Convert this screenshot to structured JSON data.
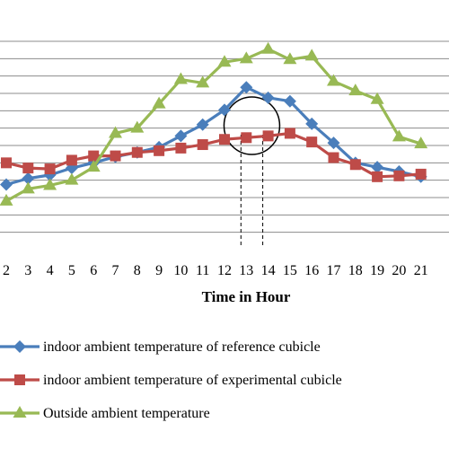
{
  "chart_data": {
    "type": "line",
    "xlabel": "Time in Hour",
    "x": [
      2,
      3,
      4,
      5,
      6,
      7,
      8,
      9,
      10,
      11,
      12,
      13,
      14,
      15,
      16,
      17,
      18,
      19,
      20,
      21
    ],
    "y_unit_note": "",
    "grid": true,
    "legend_position": "bottom",
    "series": [
      {
        "name": "indoor ambient temperature of reference cubicle",
        "color": "#4a7ebb",
        "marker": "diamond",
        "values": [
          37.5,
          38.2,
          38.6,
          39.4,
          40.0,
          40.7,
          41.2,
          41.8,
          43.1,
          44.4,
          46.1,
          48.7,
          47.5,
          47.1,
          44.5,
          42.3,
          40.0,
          39.5,
          39.0,
          38.4
        ]
      },
      {
        "name": "indoor ambient temperature of experimental cubicle",
        "color": "#be4b48",
        "marker": "square",
        "values": [
          40.0,
          39.4,
          39.3,
          40.3,
          40.8,
          40.8,
          41.2,
          41.4,
          41.7,
          42.1,
          42.7,
          42.9,
          43.1,
          43.4,
          42.4,
          40.6,
          39.8,
          38.4,
          38.5,
          38.7
        ]
      },
      {
        "name": "Outside ambient temperature",
        "color": "#98b954",
        "marker": "triangle",
        "values": [
          35.6,
          37.0,
          37.4,
          38.0,
          39.5,
          43.4,
          44.0,
          46.8,
          49.6,
          49.2,
          51.6,
          52.0,
          53.1,
          51.9,
          52.3,
          49.4,
          48.3,
          47.3,
          43.0,
          42.2
        ]
      }
    ],
    "ylim": [
      30,
      54
    ],
    "gridlines": [
      32,
      34,
      36,
      38,
      40,
      42,
      44,
      46,
      48,
      50,
      52,
      54
    ],
    "annotation": {
      "type": "circle",
      "around_x": [
        13,
        14
      ],
      "dashed_drop_lines": [
        13,
        14
      ]
    }
  }
}
